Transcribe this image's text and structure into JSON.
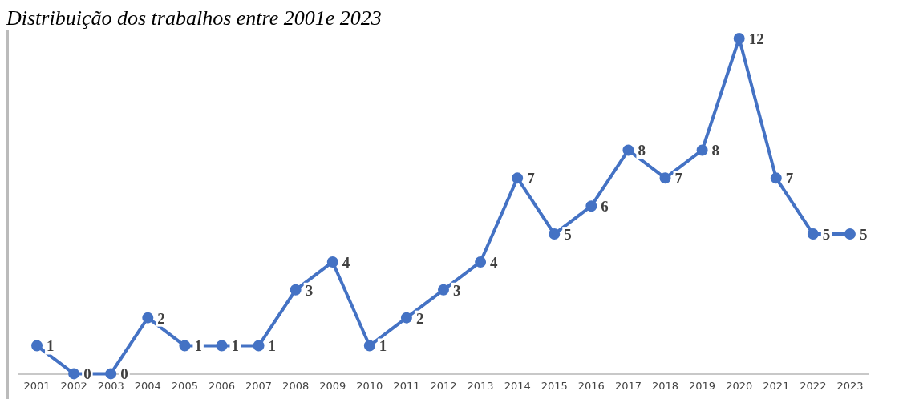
{
  "chart_data": {
    "type": "line",
    "title": "Distribuição dos trabalhos entre 2001e 2023",
    "categories": [
      "2001",
      "2002",
      "2003",
      "2004",
      "2005",
      "2006",
      "2007",
      "2008",
      "2009",
      "2010",
      "2011",
      "2012",
      "2013",
      "2014",
      "2015",
      "2016",
      "2017",
      "2018",
      "2019",
      "2020",
      "2021",
      "2022",
      "2023"
    ],
    "series": [
      {
        "color": "#4472c4",
        "values": [
          1,
          0,
          0,
          2,
          1,
          1,
          1,
          3,
          4,
          1,
          2,
          3,
          4,
          7,
          5,
          6,
          8,
          7,
          8,
          12,
          7,
          5,
          5
        ]
      }
    ],
    "data_labels": true,
    "marker": "circle",
    "grid": false,
    "legend": false
  }
}
